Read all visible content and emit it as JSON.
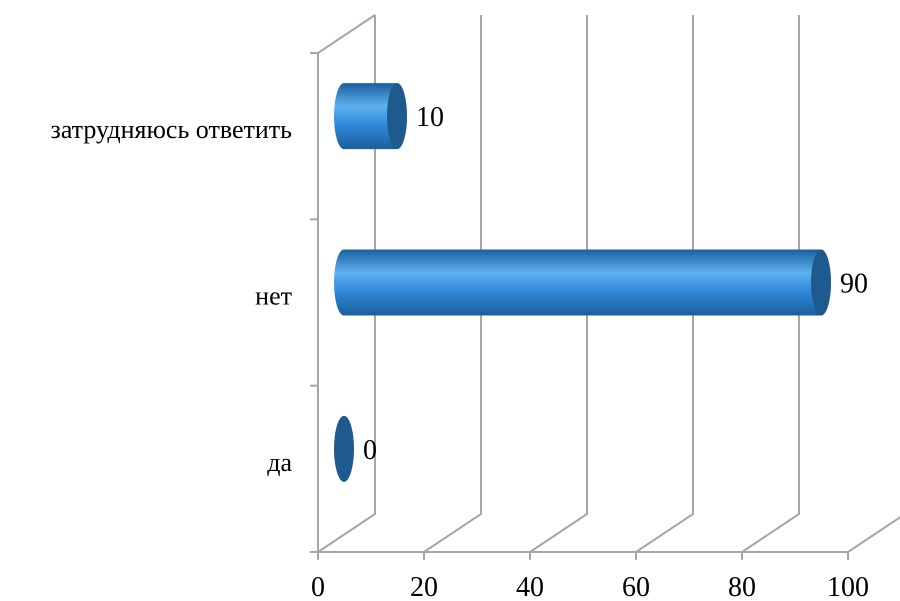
{
  "chart_data": {
    "type": "bar",
    "orientation": "horizontal",
    "style": "3d-cylinder",
    "categories": [
      "да",
      "нет",
      "затрудняюсь ответить"
    ],
    "values": [
      0,
      90,
      10
    ],
    "value_labels": [
      "0",
      "90",
      "10"
    ],
    "xlim": [
      0,
      100
    ],
    "xticks": [
      0,
      20,
      40,
      60,
      80,
      100
    ],
    "xtick_labels": [
      "0",
      "20",
      "40",
      "60",
      "80",
      "100"
    ],
    "title": "",
    "xlabel": "",
    "ylabel": "",
    "grid": true,
    "legend": "none",
    "colors": {
      "bar_body": "#2e86d6",
      "bar_highlight": "#5fb0f0",
      "bar_shadow": "#1b5f9e",
      "bar_cap": "#1f5a8f",
      "grid": "#a6a6a6"
    }
  }
}
